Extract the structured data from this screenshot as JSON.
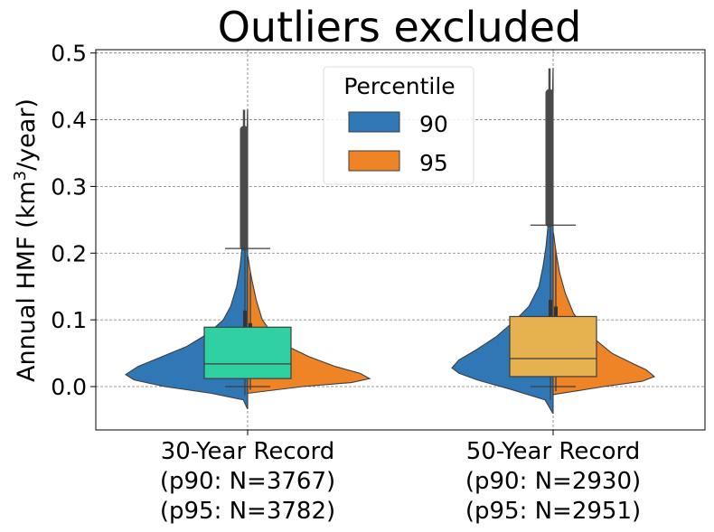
{
  "chart_data": {
    "type": "violin",
    "title": "Outliers excluded",
    "ylabel_main": "Annual HMF (km",
    "ylabel_sup": "3",
    "ylabel_tail": "/year)",
    "ylim": [
      -0.065,
      0.505
    ],
    "yticks": [
      0.0,
      0.1,
      0.2,
      0.3,
      0.4,
      0.5
    ],
    "ytick_labels": [
      "0.0",
      "0.1",
      "0.2",
      "0.3",
      "0.4",
      "0.5"
    ],
    "grid": true,
    "legend": {
      "title": "Percentile",
      "placement": "top-center",
      "entries": [
        {
          "label": "90",
          "color": "#2f78b5"
        },
        {
          "label": "95",
          "color": "#ee8426"
        }
      ]
    },
    "groups": [
      {
        "label_lines": [
          "30-Year Record",
          "(p90: N=3767)",
          "(p95: N=3782)"
        ],
        "box_color": "#2fd1a3",
        "box": {
          "q1": 0.012,
          "median": 0.034,
          "q3": 0.089,
          "whisker_low": 0.0,
          "whisker_high": 0.207
        },
        "p90": {
          "min": -0.033,
          "max": 0.415,
          "mode": 0.018,
          "outlier_min": 0.21,
          "outlier_max": 0.385,
          "inner_box": {
            "q1": 0.012,
            "median": 0.032,
            "q3": 0.114
          },
          "density": [
            [
              -0.033,
              0.003
            ],
            [
              -0.02,
              0.035
            ],
            [
              -0.01,
              0.3
            ],
            [
              0.0,
              0.68
            ],
            [
              0.01,
              0.93
            ],
            [
              0.018,
              1.0
            ],
            [
              0.03,
              0.9
            ],
            [
              0.045,
              0.7
            ],
            [
              0.06,
              0.5
            ],
            [
              0.08,
              0.32
            ],
            [
              0.1,
              0.2
            ],
            [
              0.12,
              0.14
            ],
            [
              0.15,
              0.09
            ],
            [
              0.18,
              0.062
            ],
            [
              0.21,
              0.045
            ],
            [
              0.25,
              0.032
            ],
            [
              0.3,
              0.022
            ],
            [
              0.33,
              0.012
            ],
            [
              0.36,
              0.008
            ],
            [
              0.39,
              0.004
            ],
            [
              0.415,
              0.001
            ]
          ]
        },
        "p95": {
          "min": -0.01,
          "max": 0.195,
          "mode": 0.012,
          "inner_box": {
            "q1": 0.015,
            "median": 0.035,
            "q3": 0.095
          },
          "density": [
            [
              -0.01,
              0.005
            ],
            [
              0.0,
              0.45
            ],
            [
              0.006,
              0.85
            ],
            [
              0.012,
              1.0
            ],
            [
              0.02,
              0.92
            ],
            [
              0.03,
              0.72
            ],
            [
              0.045,
              0.5
            ],
            [
              0.06,
              0.33
            ],
            [
              0.08,
              0.2
            ],
            [
              0.1,
              0.12
            ],
            [
              0.13,
              0.07
            ],
            [
              0.16,
              0.035
            ],
            [
              0.18,
              0.015
            ],
            [
              0.195,
              0.003
            ]
          ]
        }
      },
      {
        "label_lines": [
          "50-Year Record",
          "(p90: N=2930)",
          "(p95: N=2951)"
        ],
        "box_color": "#e5b24f",
        "box": {
          "q1": 0.015,
          "median": 0.042,
          "q3": 0.105,
          "whisker_low": 0.0,
          "whisker_high": 0.242
        },
        "p90": {
          "min": -0.04,
          "max": 0.477,
          "mode": 0.028,
          "outlier_min": 0.245,
          "outlier_max": 0.44,
          "inner_box": {
            "q1": 0.015,
            "median": 0.045,
            "q3": 0.13
          },
          "density": [
            [
              -0.04,
              0.003
            ],
            [
              -0.02,
              0.08
            ],
            [
              -0.005,
              0.4
            ],
            [
              0.01,
              0.75
            ],
            [
              0.02,
              0.93
            ],
            [
              0.028,
              1.0
            ],
            [
              0.04,
              0.93
            ],
            [
              0.055,
              0.76
            ],
            [
              0.075,
              0.56
            ],
            [
              0.1,
              0.37
            ],
            [
              0.12,
              0.24
            ],
            [
              0.15,
              0.14
            ],
            [
              0.18,
              0.1
            ],
            [
              0.21,
              0.07
            ],
            [
              0.25,
              0.045
            ],
            [
              0.3,
              0.03
            ],
            [
              0.35,
              0.017
            ],
            [
              0.4,
              0.01
            ],
            [
              0.44,
              0.005
            ],
            [
              0.477,
              0.001
            ]
          ]
        },
        "p95": {
          "min": -0.012,
          "max": 0.23,
          "mode": 0.015,
          "inner_box": {
            "q1": 0.02,
            "median": 0.05,
            "q3": 0.12
          },
          "density": [
            [
              -0.012,
              0.005
            ],
            [
              0.0,
              0.5
            ],
            [
              0.008,
              0.88
            ],
            [
              0.015,
              1.0
            ],
            [
              0.025,
              0.92
            ],
            [
              0.035,
              0.78
            ],
            [
              0.05,
              0.58
            ],
            [
              0.07,
              0.42
            ],
            [
              0.09,
              0.3
            ],
            [
              0.11,
              0.2
            ],
            [
              0.14,
              0.12
            ],
            [
              0.17,
              0.065
            ],
            [
              0.2,
              0.03
            ],
            [
              0.23,
              0.004
            ]
          ]
        }
      }
    ]
  },
  "colors": {
    "p90": "#2f78b5",
    "p95": "#ee8426",
    "outline": "#3d3d3d",
    "grid": "#7a7a7a"
  }
}
